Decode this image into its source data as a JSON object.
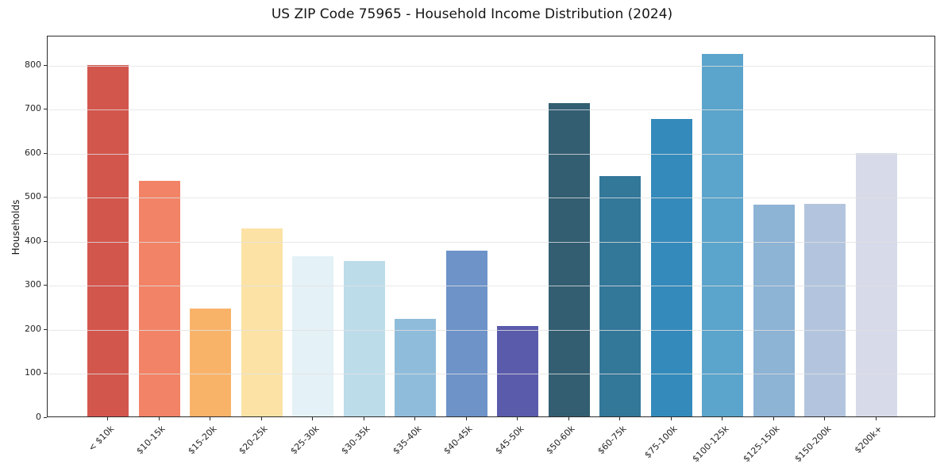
{
  "chart_data": {
    "type": "bar",
    "title": "US ZIP Code 75965 - Household Income Distribution (2024)",
    "xlabel": "",
    "ylabel": "Households",
    "categories": [
      "< $10k",
      "$10-15k",
      "$15-20k",
      "$20-25k",
      "$25-30k",
      "$30-35k",
      "$35-40k",
      "$40-45k",
      "$45-50k",
      "$50-60k",
      "$60-75k",
      "$75-100k",
      "$100-125k",
      "$125-150k",
      "$150-200k",
      "$200k+"
    ],
    "values": [
      798,
      535,
      245,
      426,
      364,
      353,
      222,
      377,
      205,
      712,
      545,
      676,
      822,
      480,
      483,
      598
    ],
    "bar_colors": [
      "#d3564d",
      "#f28367",
      "#f9b369",
      "#fce3a5",
      "#e4f1f6",
      "#bcdcea",
      "#8fbcdb",
      "#6d93c8",
      "#5a5bab",
      "#335e72",
      "#337799",
      "#348abb",
      "#5ba4cb",
      "#8db3d5",
      "#b3c5de",
      "#d7dae8"
    ],
    "yticks": [
      0,
      100,
      200,
      300,
      400,
      500,
      600,
      700,
      800
    ],
    "ylim": [
      0,
      866
    ],
    "grid": "horizontal",
    "legend": "none",
    "axis_color": "#2b2b2b",
    "background_color": "#ffffff"
  }
}
